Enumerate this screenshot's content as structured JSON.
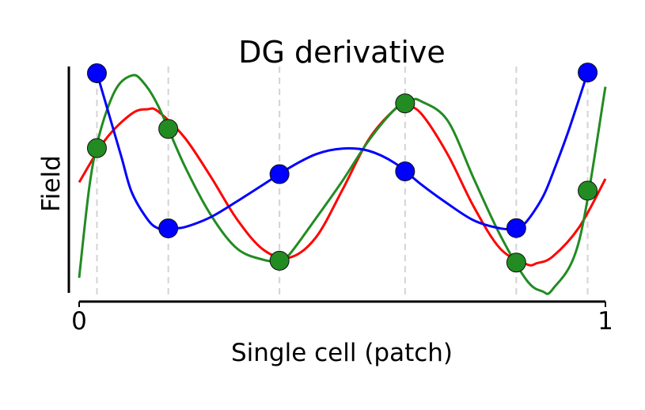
{
  "chart_data": {
    "type": "line",
    "title": "DG derivative",
    "xlabel": "Single cell (patch)",
    "ylabel": "Field",
    "xlim": [
      0,
      1
    ],
    "ylim": [
      -1.0,
      1.0
    ],
    "x_ticks": [
      "0",
      "1"
    ],
    "y_ticks": [],
    "grid": "vertical dashed lines at node positions",
    "legend": "none",
    "nodes_x": [
      0.0337652429,
      0.1693953068,
      0.3806904379,
      0.6193095621,
      0.8306046932,
      0.9662347571
    ],
    "series": [
      {
        "color": "#ff0000",
        "markers": false,
        "x": [
          0.0,
          0.05,
          0.1,
          0.13,
          0.15,
          0.2,
          0.25,
          0.3,
          0.35,
          0.4,
          0.45,
          0.5,
          0.55,
          0.6,
          0.62,
          0.65,
          0.7,
          0.75,
          0.8,
          0.85,
          0.87,
          0.9,
          0.95,
          1.0
        ],
        "y": [
          -0.03,
          0.35,
          0.58,
          0.62,
          0.6,
          0.37,
          0.02,
          -0.36,
          -0.63,
          -0.7,
          -0.52,
          -0.1,
          0.35,
          0.62,
          0.65,
          0.58,
          0.22,
          -0.25,
          -0.62,
          -0.76,
          -0.75,
          -0.69,
          -0.43,
          0.0
        ]
      },
      {
        "color": "#228b22",
        "markers": true,
        "marker_color": "#228b22",
        "x": [
          0.0,
          0.02,
          0.04,
          0.07,
          0.1,
          0.12,
          0.15,
          0.2,
          0.25,
          0.3,
          0.35,
          0.38,
          0.4,
          0.45,
          0.5,
          0.55,
          0.6,
          0.63,
          0.65,
          0.7,
          0.75,
          0.8,
          0.85,
          0.88,
          0.9,
          0.95,
          1.0
        ],
        "y": [
          -0.88,
          -0.05,
          0.42,
          0.8,
          0.92,
          0.87,
          0.65,
          0.12,
          -0.32,
          -0.62,
          -0.72,
          -0.73,
          -0.67,
          -0.35,
          -0.02,
          0.34,
          0.62,
          0.7,
          0.69,
          0.52,
          0.0,
          -0.5,
          -0.9,
          -1.0,
          -0.98,
          -0.55,
          0.82
        ]
      },
      {
        "color": "#0000ff",
        "markers": true,
        "marker_color": "#0000ff",
        "x": [
          0.03,
          0.05,
          0.08,
          0.1,
          0.13,
          0.15,
          0.17,
          0.2,
          0.25,
          0.3,
          0.35,
          0.4,
          0.45,
          0.5,
          0.55,
          0.6,
          0.65,
          0.7,
          0.75,
          0.8,
          0.83,
          0.85,
          0.88,
          0.9,
          0.93,
          0.97
        ],
        "y": [
          1.0,
          0.68,
          0.2,
          -0.12,
          -0.36,
          -0.44,
          -0.44,
          -0.43,
          -0.34,
          -0.2,
          -0.05,
          0.1,
          0.22,
          0.27,
          0.25,
          0.14,
          -0.05,
          -0.22,
          -0.37,
          -0.44,
          -0.44,
          -0.38,
          -0.17,
          0.05,
          0.43,
          1.0
        ]
      }
    ]
  }
}
